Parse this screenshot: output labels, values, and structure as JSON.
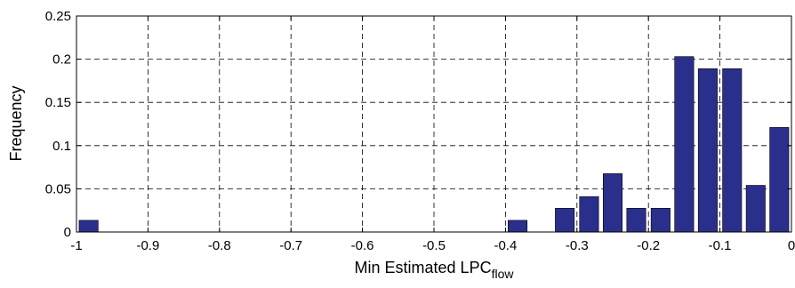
{
  "chart_data": {
    "type": "bar",
    "xlabel": "Min Estimated LPC",
    "xlabel_subscript": "flow",
    "ylabel": "Frequency",
    "xlim": [
      -1,
      0
    ],
    "ylim": [
      0,
      0.25
    ],
    "xticks": [
      -1,
      -0.9,
      -0.8,
      -0.7,
      -0.6,
      -0.5,
      -0.4,
      -0.3,
      -0.2,
      -0.1,
      0
    ],
    "xtick_labels": [
      "-1",
      "-0.9",
      "-0.8",
      "-0.7",
      "-0.6",
      "-0.5",
      "-0.4",
      "-0.3",
      "-0.2",
      "-0.1",
      "0"
    ],
    "yticks": [
      0,
      0.05,
      0.1,
      0.15,
      0.2,
      0.25
    ],
    "ytick_labels": [
      "0",
      "0.05",
      "0.1",
      "0.15",
      "0.2",
      "0.25"
    ],
    "grid": true,
    "bar_color": "#2b2f8c",
    "bin_width": 0.0333,
    "x": [
      -0.983,
      -0.383,
      -0.317,
      -0.283,
      -0.25,
      -0.217,
      -0.183,
      -0.15,
      -0.117,
      -0.083,
      -0.05,
      -0.017
    ],
    "values": [
      0.0135,
      0.0135,
      0.0275,
      0.041,
      0.0675,
      0.0275,
      0.0275,
      0.203,
      0.189,
      0.189,
      0.054,
      0.121
    ]
  }
}
